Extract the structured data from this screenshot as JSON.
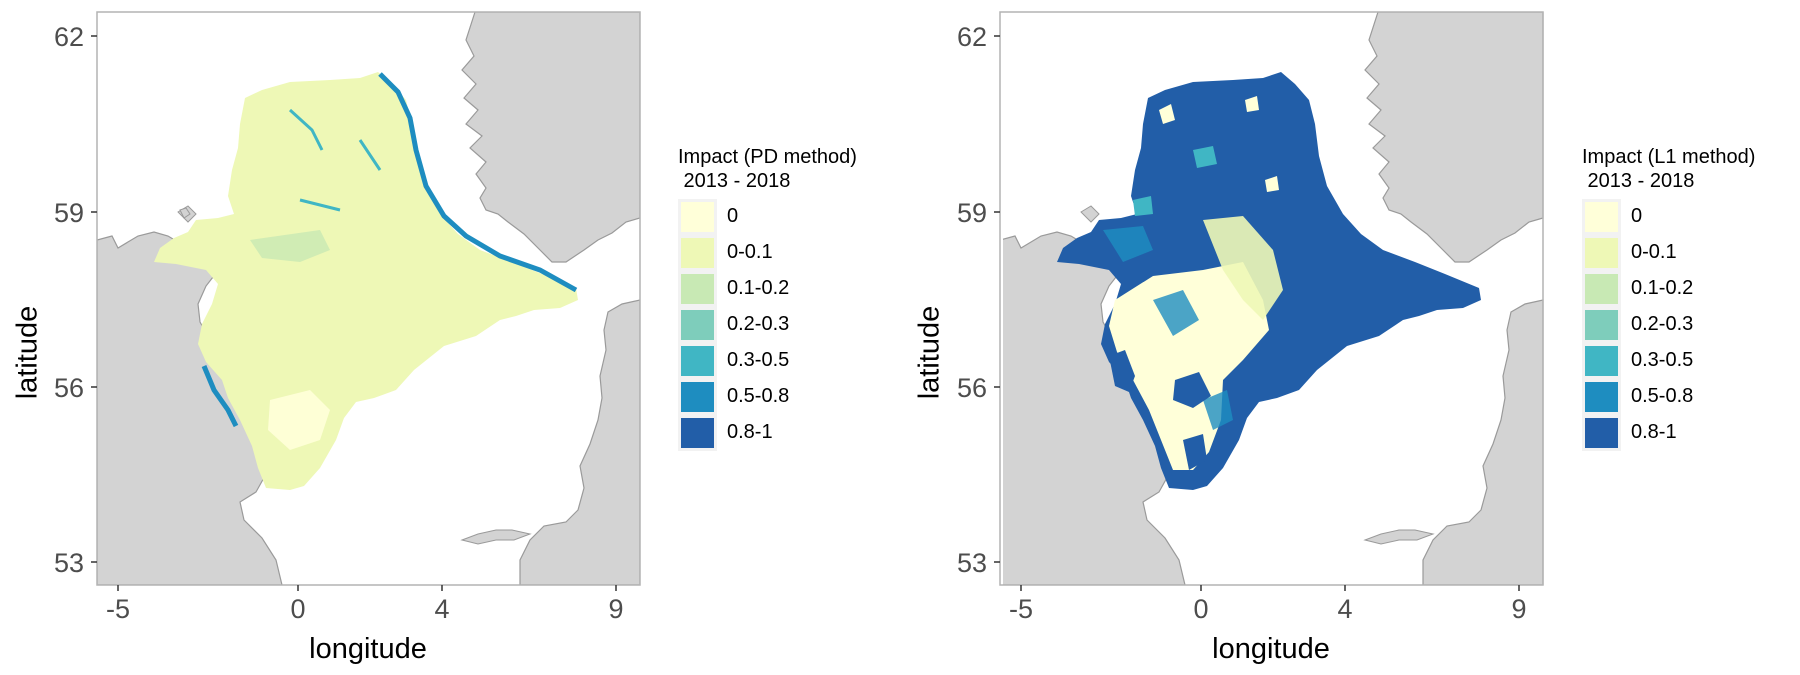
{
  "colors": {
    "land": "#d3d3d3",
    "land_outline": "#9a9a9a",
    "panel_border": "#b3b3b3",
    "scale": [
      "#ffffd9",
      "#eef8b6",
      "#c8e9b4",
      "#7ecdbb",
      "#40b6c4",
      "#1e8dc0",
      "#225ea8"
    ]
  },
  "panels": [
    {
      "legend_title": "Impact (PD method)\n 2013 - 2018",
      "legend_labels": [
        "0",
        "0-0.1",
        "0.1-0.2",
        "0.2-0.3",
        "0.3-0.5",
        "0.5-0.8",
        "0.8-1"
      ],
      "xlabel": "longitude",
      "ylabel": "latitude",
      "xticks": [
        "-5",
        "0",
        "4",
        "9"
      ],
      "yticks": [
        "62",
        "59",
        "56",
        "53"
      ]
    },
    {
      "legend_title": "Impact (L1 method)\n 2013 - 2018",
      "legend_labels": [
        "0",
        "0-0.1",
        "0.1-0.2",
        "0.2-0.3",
        "0.3-0.5",
        "0.5-0.8",
        "0.8-1"
      ],
      "xlabel": "longitude",
      "ylabel": "latitude",
      "xticks": [
        "-5",
        "0",
        "4",
        "9"
      ],
      "yticks": [
        "62",
        "59",
        "56",
        "53"
      ]
    }
  ]
}
